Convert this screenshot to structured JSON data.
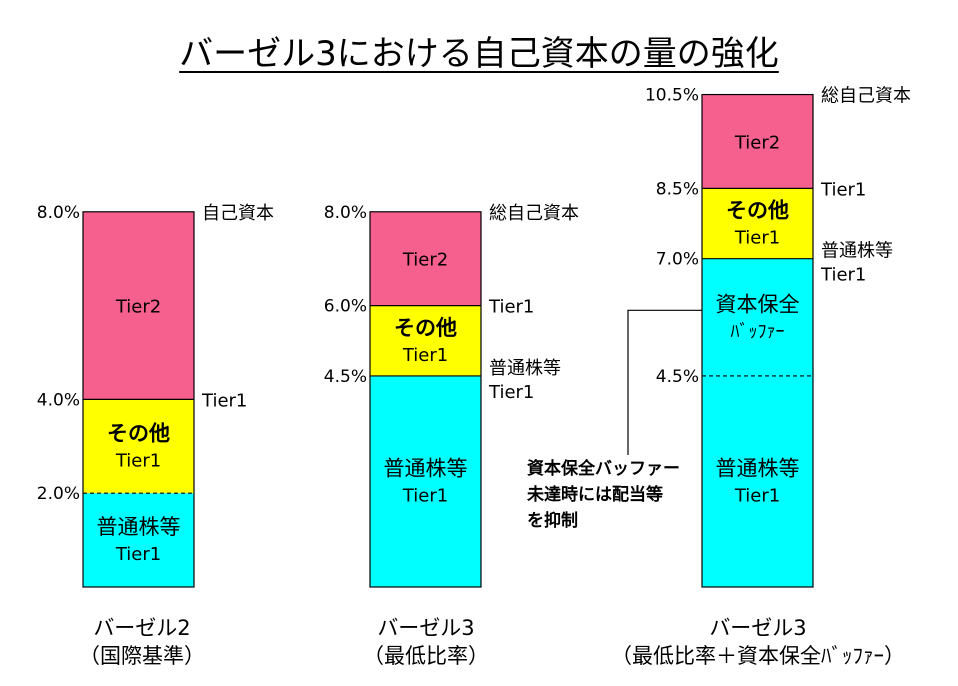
{
  "title": "バーゼル3における自己資本の量の強化",
  "chart_data": [
    {
      "type": "bar",
      "caption": [
        "バーゼル2",
        "（国際基準）"
      ],
      "ylim": [
        0,
        10.5
      ],
      "segments": [
        {
          "from": 0,
          "to": 2.0,
          "color": "#00ffff",
          "labels": [
            "普通株等",
            "Tier1"
          ],
          "bold": false
        },
        {
          "from": 2.0,
          "to": 4.0,
          "color": "#ffff00",
          "labels": [
            "その他",
            "Tier1"
          ],
          "bold": true
        },
        {
          "from": 4.0,
          "to": 8.0,
          "color": "#f6608e",
          "labels": [
            "Tier2"
          ],
          "bold": false
        }
      ],
      "dashed_at": [
        2.0
      ],
      "tick_labels": [
        {
          "value": 8.0,
          "text": "8.0%"
        },
        {
          "value": 4.0,
          "text": "4.0%"
        },
        {
          "value": 2.0,
          "text": "2.0%"
        }
      ],
      "right_labels": [
        {
          "value": 8.0,
          "lines": [
            "自己資本"
          ]
        },
        {
          "value": 4.0,
          "lines": [
            "Tier1"
          ]
        }
      ]
    },
    {
      "type": "bar",
      "caption": [
        "バーゼル3",
        "（最低比率）"
      ],
      "ylim": [
        0,
        10.5
      ],
      "segments": [
        {
          "from": 0,
          "to": 4.5,
          "color": "#00ffff",
          "labels": [
            "普通株等",
            "Tier1"
          ],
          "bold": false
        },
        {
          "from": 4.5,
          "to": 6.0,
          "color": "#ffff00",
          "labels": [
            "その他",
            "Tier1"
          ],
          "bold": true
        },
        {
          "from": 6.0,
          "to": 8.0,
          "color": "#f6608e",
          "labels": [
            "Tier2"
          ],
          "bold": false
        }
      ],
      "dashed_at": [],
      "tick_labels": [
        {
          "value": 8.0,
          "text": "8.0%"
        },
        {
          "value": 6.0,
          "text": "6.0%"
        },
        {
          "value": 4.5,
          "text": "4.5%"
        }
      ],
      "right_labels": [
        {
          "value": 8.0,
          "lines": [
            "総自己資本"
          ]
        },
        {
          "value": 6.0,
          "lines": [
            "Tier1"
          ]
        },
        {
          "value": 4.5,
          "lines": [
            "普通株等",
            "Tier1"
          ]
        }
      ]
    },
    {
      "type": "bar",
      "caption": [
        "バーゼル3",
        "（最低比率＋資本保全ﾊﾞｯﾌｧｰ）"
      ],
      "ylim": [
        0,
        10.5
      ],
      "segments": [
        {
          "from": 0,
          "to": 4.5,
          "color": "#00ffff",
          "labels": [
            "普通株等",
            "Tier1"
          ],
          "bold": false
        },
        {
          "from": 4.5,
          "to": 7.0,
          "color": "#00ffff",
          "labels": [
            "資本保全",
            "ﾊﾞｯﾌｧｰ"
          ],
          "bold": false
        },
        {
          "from": 7.0,
          "to": 8.5,
          "color": "#ffff00",
          "labels": [
            "その他",
            "Tier1"
          ],
          "bold": true
        },
        {
          "from": 8.5,
          "to": 10.5,
          "color": "#f6608e",
          "labels": [
            "Tier2"
          ],
          "bold": false
        }
      ],
      "dashed_at": [
        4.5
      ],
      "tick_labels": [
        {
          "value": 10.5,
          "text": "10.5%"
        },
        {
          "value": 8.5,
          "text": "8.5%"
        },
        {
          "value": 7.0,
          "text": "7.0%"
        },
        {
          "value": 4.5,
          "text": "4.5%"
        }
      ],
      "right_labels": [
        {
          "value": 10.5,
          "lines": [
            "総自己資本"
          ]
        },
        {
          "value": 8.5,
          "lines": [
            "Tier1"
          ]
        },
        {
          "value": 7.0,
          "lines": [
            "普通株等",
            "Tier1"
          ]
        }
      ],
      "annotation": [
        "資本保全バッファー",
        "未達時には配当等",
        "を抑制"
      ]
    }
  ]
}
